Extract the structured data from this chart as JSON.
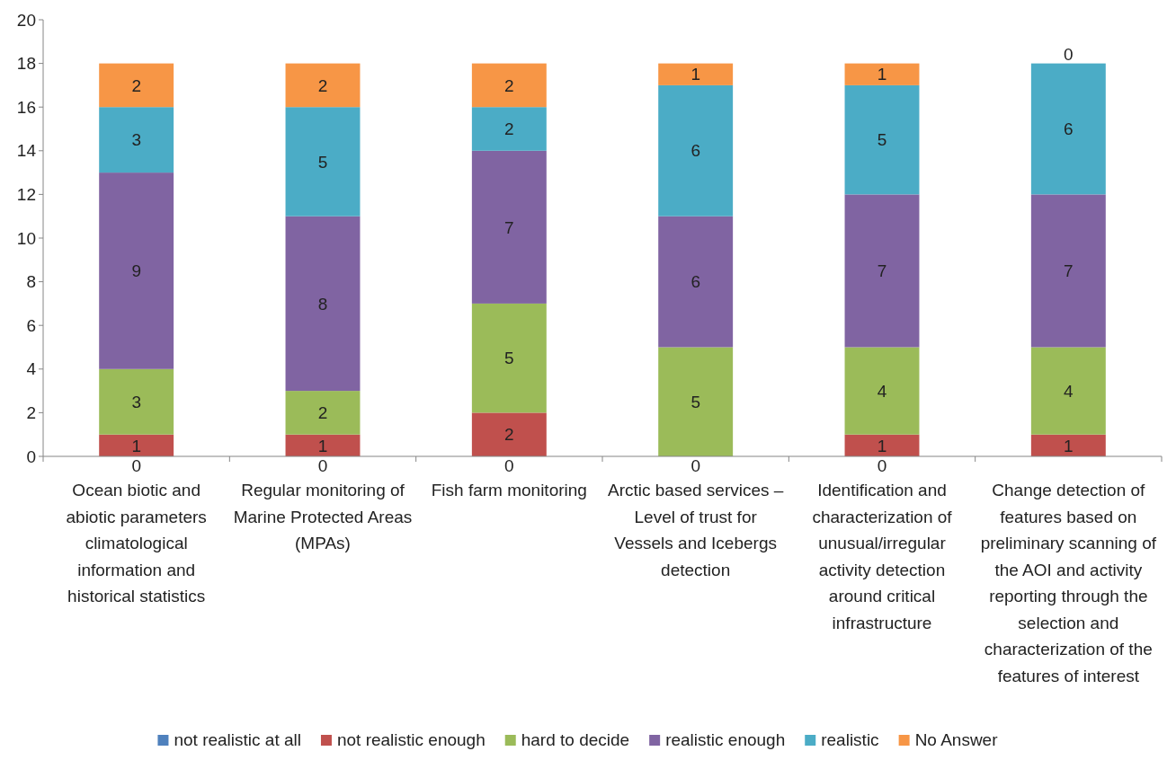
{
  "chart_data": {
    "type": "bar",
    "stacked": true,
    "categories": [
      "Ocean biotic and abiotic parameters climatological information and historical statistics",
      "Regular monitoring of Marine Protected Areas (MPAs)",
      "Fish farm monitoring",
      "Arctic based services – Level of trust for Vessels and Icebergs detection",
      "Identification and characterization of unusual/irregular activity detection around critical infrastructure",
      "Change detection of features based on preliminary scanning of the AOI and activity reporting through the selection and characterization of the features of interest"
    ],
    "series": [
      {
        "name": "not realistic at all",
        "color": "#4f81bd",
        "values": [
          0,
          0,
          0,
          0,
          0,
          0
        ],
        "value_labels": [
          null,
          null,
          null,
          null,
          null,
          null
        ]
      },
      {
        "name": "not realistic enough",
        "color": "#c0504d",
        "values": [
          1,
          1,
          2,
          0,
          1,
          1
        ],
        "value_labels": [
          "1",
          "1",
          "2",
          null,
          "1",
          "1"
        ]
      },
      {
        "name": "hard to decide",
        "color": "#9bbb59",
        "values": [
          3,
          2,
          5,
          5,
          4,
          4
        ],
        "value_labels": [
          "3",
          "2",
          "5",
          "5",
          "4",
          "4"
        ]
      },
      {
        "name": "realistic enough",
        "color": "#8064a2",
        "values": [
          9,
          8,
          7,
          6,
          7,
          7
        ],
        "value_labels": [
          "9",
          "8",
          "7",
          "6",
          "7",
          "7"
        ]
      },
      {
        "name": "realistic",
        "color": "#4bacc6",
        "values": [
          3,
          5,
          2,
          6,
          5,
          6
        ],
        "value_labels": [
          "3",
          "5",
          "2",
          "6",
          "5",
          "6"
        ]
      },
      {
        "name": "No Answer",
        "color": "#f79646",
        "values": [
          2,
          2,
          2,
          1,
          1,
          0
        ],
        "value_labels": [
          "2",
          "2",
          "2",
          "1",
          "1",
          null
        ]
      }
    ],
    "annotations": [
      {
        "text": "0",
        "x": "Ocean biotic and abiotic parameters climatological information and historical statistics",
        "y": 0
      },
      {
        "text": "0",
        "x": "Regular monitoring of Marine Protected Areas (MPAs)",
        "y": 0
      },
      {
        "text": "0",
        "x": "Fish farm monitoring",
        "y": 0
      },
      {
        "text": "0",
        "x": "Arctic based services – Level of trust for Vessels and Icebergs detection",
        "y": 0
      },
      {
        "text": "0",
        "x": "Identification and characterization of unusual/irregular activity detection around critical infrastructure",
        "y": 0
      },
      {
        "text": "0",
        "x": "Change detection of features based on preliminary scanning of the AOI and activity reporting through the selection and characterization of the features of interest",
        "y": 18
      }
    ],
    "ylim": [
      0,
      20
    ],
    "yticks": [
      0,
      2,
      4,
      6,
      8,
      10,
      12,
      14,
      16,
      18,
      20
    ],
    "grid": false,
    "legend": "bottom"
  }
}
